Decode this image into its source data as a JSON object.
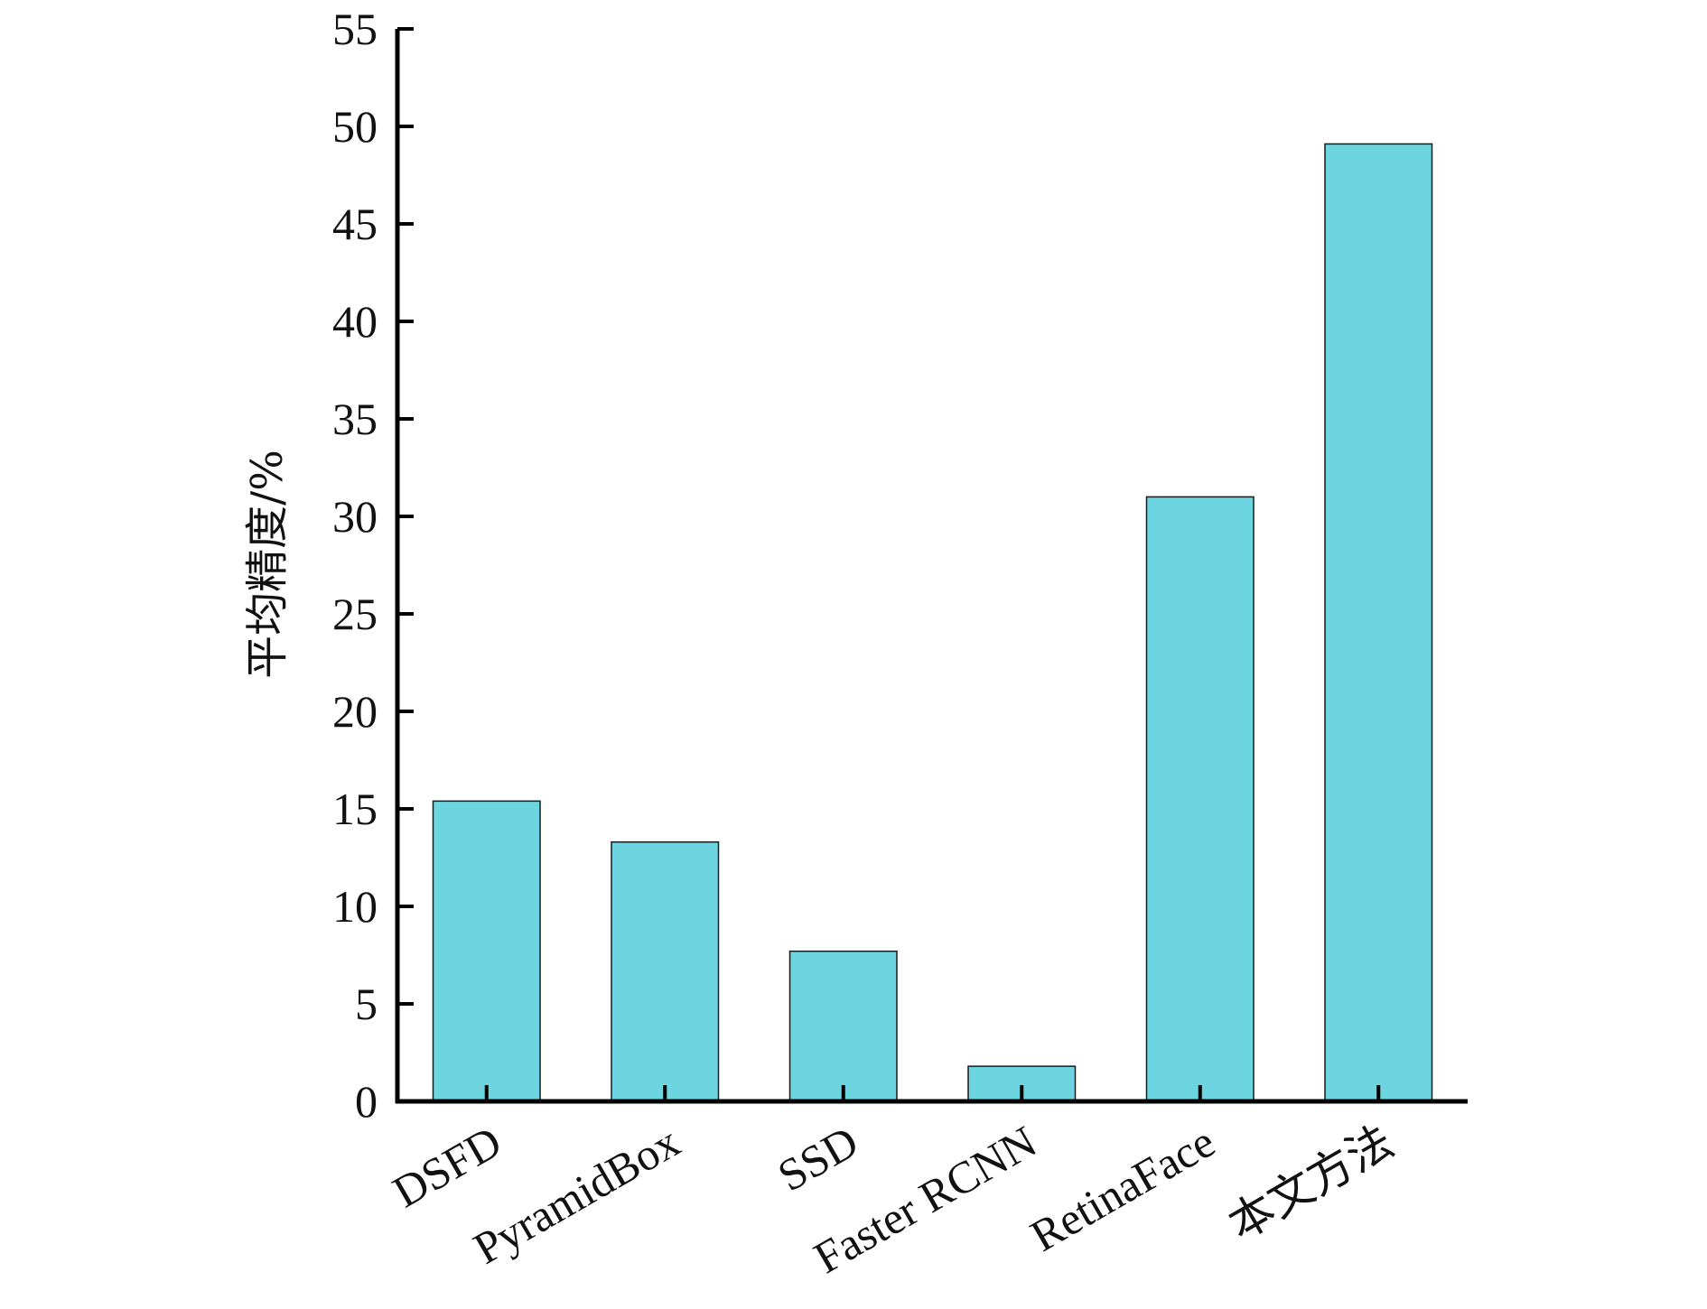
{
  "chart_data": {
    "type": "bar",
    "title": "",
    "xlabel": "",
    "ylabel": "平均精度/%",
    "categories": [
      "DSFD",
      "PyramidBox",
      "SSD",
      "Faster RCNN",
      "RetinaFace",
      "本文方法"
    ],
    "values": [
      15.4,
      13.3,
      7.7,
      1.8,
      31.0,
      49.1
    ],
    "ylim": [
      0,
      55
    ],
    "yticks": [
      0,
      5,
      10,
      15,
      20,
      25,
      30,
      35,
      40,
      45,
      50,
      55
    ],
    "grid": false,
    "legend": "none",
    "colors": {
      "bar_fill": "#6dd5df",
      "bar_stroke": "#1a1a1a",
      "axis": "#000000"
    }
  }
}
